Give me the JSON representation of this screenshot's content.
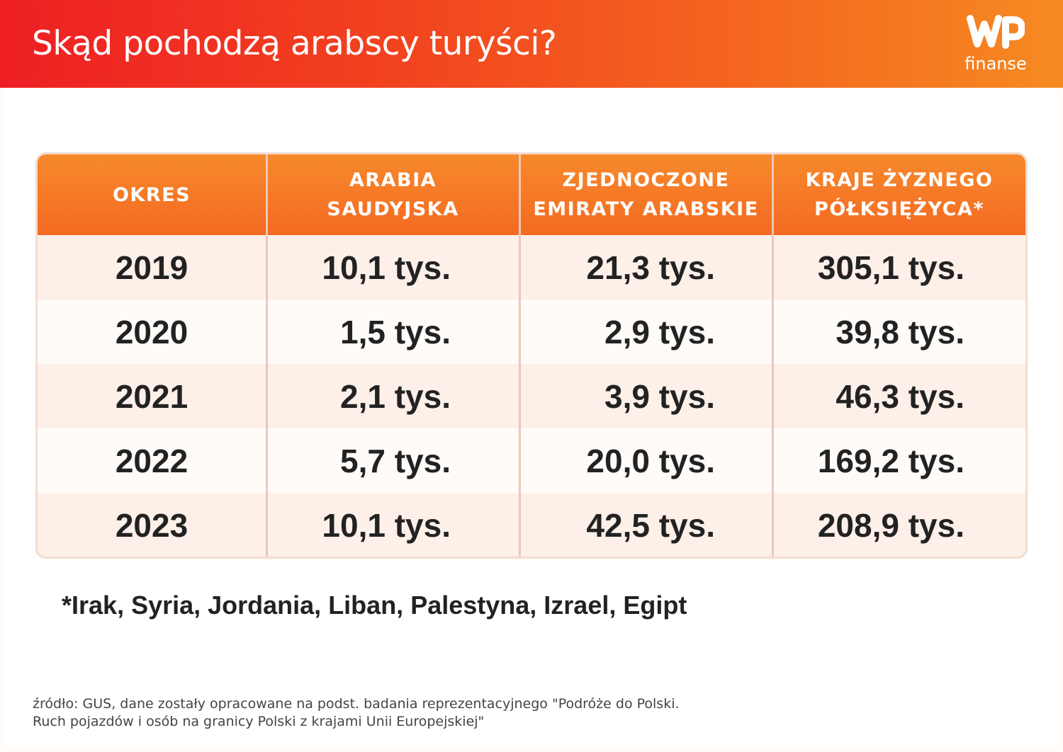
{
  "header": {
    "title": "Skąd pochodzą arabscy turyści?",
    "logo_text": "finanse",
    "logo_mark": "WP",
    "gradient_start": "#ee1f24",
    "gradient_end": "#f68a22"
  },
  "chart_data": {
    "type": "table",
    "columns": [
      "OKRES",
      "ARABIA\nSAUDYJSKA",
      "ZJEDNOCZONE\nEMIRATY ARABSKIE",
      "KRAJE ŻYZNEGO\nPÓŁKSIĘŻYCA*"
    ],
    "rows": [
      [
        "2019",
        "10,1 tys.",
        "21,3 tys.",
        "305,1 tys."
      ],
      [
        "2020",
        "1,5 tys.",
        "2,9 tys.",
        "39,8 tys."
      ],
      [
        "2021",
        "2,1 tys.",
        "3,9 tys.",
        "46,3 tys."
      ],
      [
        "2022",
        "5,7 tys.",
        "20,0 tys.",
        "169,2 tys."
      ],
      [
        "2023",
        "10,1 tys.",
        "42,5 tys.",
        "208,9 tys."
      ]
    ],
    "header_color": "#f46a22"
  },
  "footnote": "*Irak, Syria, Jordania, Liban, Palestyna, Izrael, Egipt",
  "source": {
    "line1": "źródło: GUS, dane zostały opracowane na podst. badania reprezentacyjnego \"Podróże do Polski.",
    "line2": "Ruch pojazdów i osób na granicy Polski z krajami Unii Europejskiej\""
  }
}
